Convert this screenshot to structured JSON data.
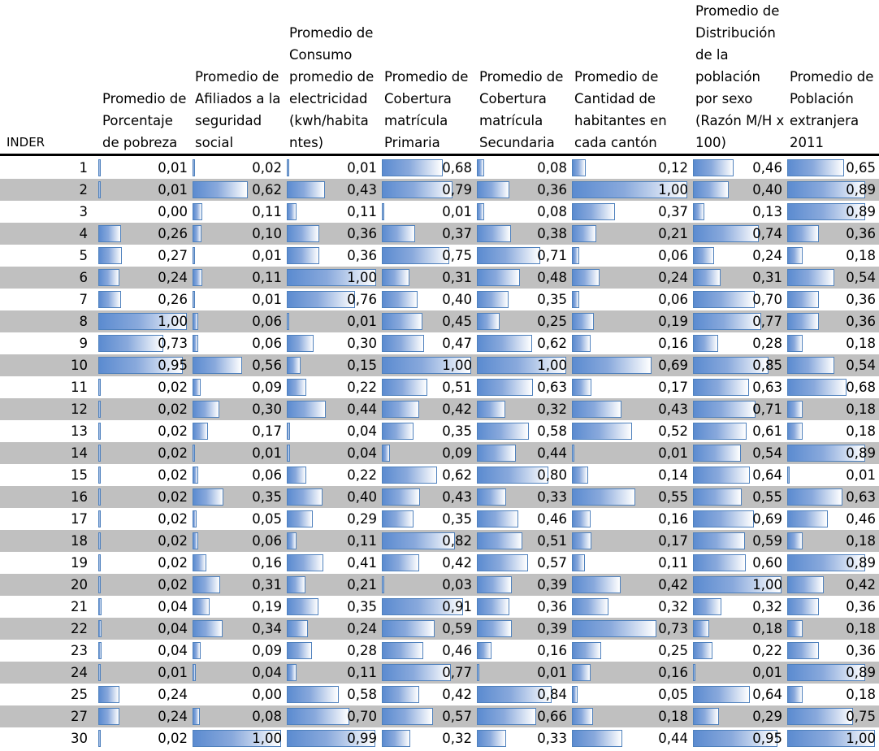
{
  "headers": [
    "INDER",
    "Promedio de\nPorcentaje\nde pobreza",
    "Promedio de\nAfiliados a la\nseguridad\nsocial",
    "Promedio de\nConsumo\npromedio de\nelectricidad\n(kwh/habita\nntes)",
    "Promedio de\nCobertura\nmatrícula\nPrimaria",
    "Promedio de\nCobertura\nmatrícula\nSecundaria",
    "Promedio de\nCantidad de\nhabitantes en\ncada cantón",
    "Promedio de\nDistribución\nde la\npoblación\npor sexo\n(Razón M/H x\n100)",
    "Promedio de\nPoblación\nextranjera\n2011"
  ],
  "rows": [
    {
      "inder": "1",
      "values": [
        "0,01",
        "0,02",
        "0,01",
        "0,68",
        "0,08",
        "0,12",
        "0,46",
        "0,65"
      ]
    },
    {
      "inder": "2",
      "values": [
        "0,01",
        "0,62",
        "0,43",
        "0,79",
        "0,36",
        "1,00",
        "0,40",
        "0,89"
      ]
    },
    {
      "inder": "3",
      "values": [
        "0,00",
        "0,11",
        "0,11",
        "0,01",
        "0,08",
        "0,37",
        "0,13",
        "0,89"
      ]
    },
    {
      "inder": "4",
      "values": [
        "0,26",
        "0,10",
        "0,36",
        "0,37",
        "0,38",
        "0,21",
        "0,74",
        "0,36"
      ]
    },
    {
      "inder": "5",
      "values": [
        "0,27",
        "0,01",
        "0,36",
        "0,75",
        "0,71",
        "0,06",
        "0,24",
        "0,18"
      ]
    },
    {
      "inder": "6",
      "values": [
        "0,24",
        "0,11",
        "1,00",
        "0,31",
        "0,48",
        "0,24",
        "0,31",
        "0,54"
      ]
    },
    {
      "inder": "7",
      "values": [
        "0,26",
        "0,01",
        "0,76",
        "0,40",
        "0,35",
        "0,06",
        "0,70",
        "0,36"
      ]
    },
    {
      "inder": "8",
      "values": [
        "1,00",
        "0,06",
        "0,01",
        "0,45",
        "0,25",
        "0,19",
        "0,77",
        "0,36"
      ]
    },
    {
      "inder": "9",
      "values": [
        "0,73",
        "0,06",
        "0,30",
        "0,47",
        "0,62",
        "0,16",
        "0,28",
        "0,18"
      ]
    },
    {
      "inder": "10",
      "values": [
        "0,95",
        "0,56",
        "0,15",
        "1,00",
        "1,00",
        "0,69",
        "0,85",
        "0,54"
      ]
    },
    {
      "inder": "11",
      "values": [
        "0,02",
        "0,09",
        "0,22",
        "0,51",
        "0,63",
        "0,17",
        "0,63",
        "0,68"
      ]
    },
    {
      "inder": "12",
      "values": [
        "0,02",
        "0,30",
        "0,44",
        "0,42",
        "0,32",
        "0,43",
        "0,71",
        "0,18"
      ]
    },
    {
      "inder": "13",
      "values": [
        "0,02",
        "0,17",
        "0,04",
        "0,35",
        "0,58",
        "0,52",
        "0,61",
        "0,18"
      ]
    },
    {
      "inder": "14",
      "values": [
        "0,02",
        "0,01",
        "0,04",
        "0,09",
        "0,44",
        "0,01",
        "0,54",
        "0,89"
      ]
    },
    {
      "inder": "15",
      "values": [
        "0,02",
        "0,06",
        "0,22",
        "0,62",
        "0,80",
        "0,14",
        "0,64",
        "0,01"
      ]
    },
    {
      "inder": "16",
      "values": [
        "0,02",
        "0,35",
        "0,40",
        "0,43",
        "0,33",
        "0,55",
        "0,55",
        "0,63"
      ]
    },
    {
      "inder": "17",
      "values": [
        "0,02",
        "0,05",
        "0,29",
        "0,35",
        "0,46",
        "0,16",
        "0,69",
        "0,46"
      ]
    },
    {
      "inder": "18",
      "values": [
        "0,02",
        "0,06",
        "0,11",
        "0,82",
        "0,51",
        "0,17",
        "0,59",
        "0,18"
      ]
    },
    {
      "inder": "19",
      "values": [
        "0,02",
        "0,16",
        "0,41",
        "0,42",
        "0,57",
        "0,11",
        "0,60",
        "0,89"
      ]
    },
    {
      "inder": "20",
      "values": [
        "0,02",
        "0,31",
        "0,21",
        "0,03",
        "0,39",
        "0,42",
        "1,00",
        "0,42"
      ]
    },
    {
      "inder": "21",
      "values": [
        "0,04",
        "0,19",
        "0,35",
        "0,91",
        "0,36",
        "0,32",
        "0,32",
        "0,36"
      ]
    },
    {
      "inder": "22",
      "values": [
        "0,04",
        "0,34",
        "0,24",
        "0,59",
        "0,39",
        "0,73",
        "0,18",
        "0,18"
      ]
    },
    {
      "inder": "23",
      "values": [
        "0,04",
        "0,09",
        "0,28",
        "0,46",
        "0,16",
        "0,25",
        "0,22",
        "0,36"
      ]
    },
    {
      "inder": "24",
      "values": [
        "0,01",
        "0,04",
        "0,11",
        "0,77",
        "0,01",
        "0,16",
        "0,01",
        "0,89"
      ]
    },
    {
      "inder": "25",
      "values": [
        "0,24",
        "0,00",
        "0,58",
        "0,42",
        "0,84",
        "0,05",
        "0,64",
        "0,18"
      ]
    },
    {
      "inder": "27",
      "values": [
        "0,24",
        "0,08",
        "0,70",
        "0,57",
        "0,66",
        "0,18",
        "0,29",
        "0,75"
      ]
    },
    {
      "inder": "30",
      "values": [
        "0,02",
        "1,00",
        "0,99",
        "0,32",
        "0,33",
        "0,44",
        "0,95",
        "1,00"
      ]
    }
  ],
  "colors": {
    "bar_fill": "#5b8bd0",
    "bar_border": "#4f81bd",
    "row_shade": "#c0c0c0",
    "rule": "#000000"
  }
}
